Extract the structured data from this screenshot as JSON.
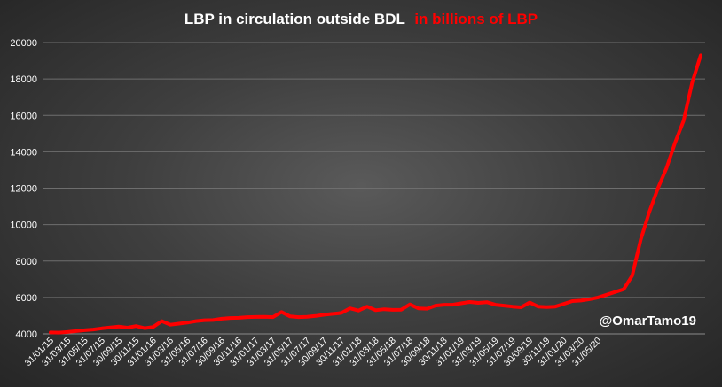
{
  "chart_data": {
    "type": "line",
    "title": "LBP in circulation outside BDL",
    "title_suffix": "in billions of LBP",
    "watermark": "@OmarTamo19",
    "xlabel": "",
    "ylabel": "",
    "ylim": [
      4000,
      20000
    ],
    "yticks": [
      4000,
      6000,
      8000,
      10000,
      12000,
      14000,
      16000,
      18000,
      20000
    ],
    "grid": true,
    "legend": "none",
    "colors": {
      "line": "#ff0000",
      "title_suffix": "#ff0000",
      "text": "#ffffff",
      "grid": "#6e6e6e"
    },
    "x_tick_labels": [
      "31/01/15",
      "31/03/15",
      "31/05/15",
      "31/07/15",
      "30/09/15",
      "30/11/15",
      "31/01/16",
      "31/03/16",
      "31/05/16",
      "31/07/16",
      "30/09/16",
      "30/11/16",
      "31/01/17",
      "31/03/17",
      "31/05/17",
      "31/07/17",
      "30/09/17",
      "30/11/17",
      "31/01/18",
      "31/03/18",
      "31/05/18",
      "31/07/18",
      "30/09/18",
      "30/11/18",
      "31/01/19",
      "31/03/19",
      "31/05/19",
      "31/07/19",
      "30/09/19",
      "30/11/19",
      "31/01/20",
      "31/03/20",
      "31/05/20"
    ],
    "series": [
      {
        "values": [
          4080,
          4070,
          4100,
          4150,
          4200,
          4240,
          4300,
          4350,
          4400,
          4340,
          4430,
          4310,
          4380,
          4700,
          4500,
          4560,
          4620,
          4700,
          4750,
          4760,
          4830,
          4870,
          4880,
          4920,
          4930,
          4940,
          4920,
          5200,
          4960,
          4920,
          4940,
          4980,
          5050,
          5100,
          5150,
          5400,
          5280,
          5500,
          5300,
          5350,
          5320,
          5330,
          5620,
          5400,
          5380,
          5550,
          5600,
          5600,
          5680,
          5750,
          5700,
          5740,
          5600,
          5550,
          5500,
          5460,
          5720,
          5500,
          5470,
          5500,
          5650,
          5800,
          5830,
          5900,
          6000,
          6150,
          6300,
          6450,
          7200,
          9200,
          10700,
          12000,
          13100,
          14500,
          15700,
          17800,
          19300
        ]
      }
    ]
  }
}
